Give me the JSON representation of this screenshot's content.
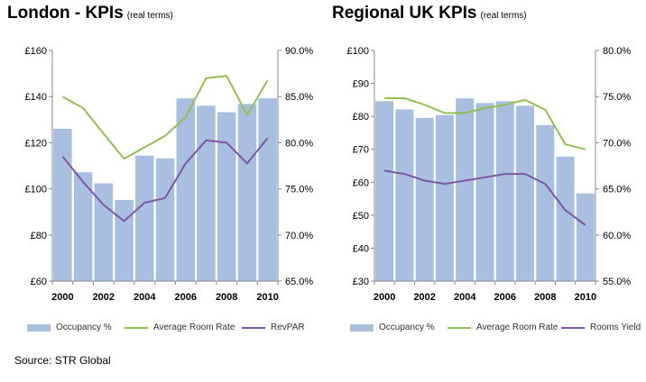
{
  "source": "Source: STR Global",
  "colors": {
    "bar": "#a8bfe0",
    "rate": "#92c050",
    "third": "#7c57a3"
  },
  "chart_data": [
    {
      "id": "london",
      "type": "bar+line",
      "title": "London - KPIs",
      "subtitle": "(real terms)",
      "x": [
        2000,
        2001,
        2002,
        2003,
        2004,
        2005,
        2006,
        2007,
        2008,
        2009,
        2010
      ],
      "x_tick_labels": [
        "2000",
        "2002",
        "2004",
        "2006",
        "2008",
        "2010"
      ],
      "y_left": {
        "range": [
          60,
          160
        ],
        "step": 20,
        "tick_labels": [
          "£60",
          "£80",
          "£100",
          "£120",
          "£140",
          "£160"
        ]
      },
      "y_right": {
        "range": [
          65,
          90
        ],
        "step": 5,
        "tick_labels": [
          "65.0%",
          "70.0%",
          "75.0%",
          "80.0%",
          "85.0%",
          "90.0%"
        ]
      },
      "grid": false,
      "legend_position": "bottom",
      "series": [
        {
          "name": "Occupancy %",
          "kind": "bar",
          "axis": "right",
          "values": [
            81.5,
            76.8,
            75.6,
            73.8,
            78.6,
            78.3,
            84.8,
            84.0,
            83.3,
            84.2,
            84.8
          ]
        },
        {
          "name": "Average Room Rate",
          "kind": "line",
          "axis": "left",
          "values": [
            140,
            135,
            124,
            113,
            118,
            123,
            131,
            148,
            149,
            132,
            147
          ]
        },
        {
          "name": "RevPAR",
          "kind": "line",
          "axis": "left",
          "values": [
            114,
            103,
            93,
            86,
            94,
            96,
            111,
            121,
            120,
            111,
            122
          ]
        }
      ]
    },
    {
      "id": "regional",
      "type": "bar+line",
      "title": "Regional UK KPIs",
      "subtitle": "(real terms)",
      "x": [
        2000,
        2001,
        2002,
        2003,
        2004,
        2005,
        2006,
        2007,
        2008,
        2009,
        2010
      ],
      "x_tick_labels": [
        "2000",
        "2002",
        "2004",
        "2006",
        "2008",
        "2010"
      ],
      "y_left": {
        "range": [
          30,
          100
        ],
        "step": 10,
        "tick_labels": [
          "£30",
          "£40",
          "£50",
          "£60",
          "£70",
          "£80",
          "£90",
          "£100"
        ]
      },
      "y_right": {
        "range": [
          55,
          80
        ],
        "step": 5,
        "tick_labels": [
          "55.0%",
          "60.0%",
          "65.0%",
          "70.0%",
          "75.0%",
          "80.0%"
        ]
      },
      "grid": false,
      "legend_position": "bottom",
      "series": [
        {
          "name": "Occupancy %",
          "kind": "bar",
          "axis": "right",
          "values": [
            74.5,
            73.6,
            72.7,
            73.0,
            74.8,
            74.3,
            74.5,
            74.0,
            71.9,
            68.5,
            64.5
          ]
        },
        {
          "name": "Average Room Rate",
          "kind": "line",
          "axis": "left",
          "values": [
            85.5,
            85.5,
            83.5,
            81,
            81,
            82.5,
            83.5,
            85,
            82,
            71.5,
            70
          ]
        },
        {
          "name": "Rooms Yield",
          "kind": "line",
          "axis": "left",
          "values": [
            63.5,
            62.5,
            60.5,
            59.5,
            60.5,
            61.5,
            62.5,
            62.5,
            59.5,
            51.5,
            47
          ]
        }
      ]
    }
  ]
}
